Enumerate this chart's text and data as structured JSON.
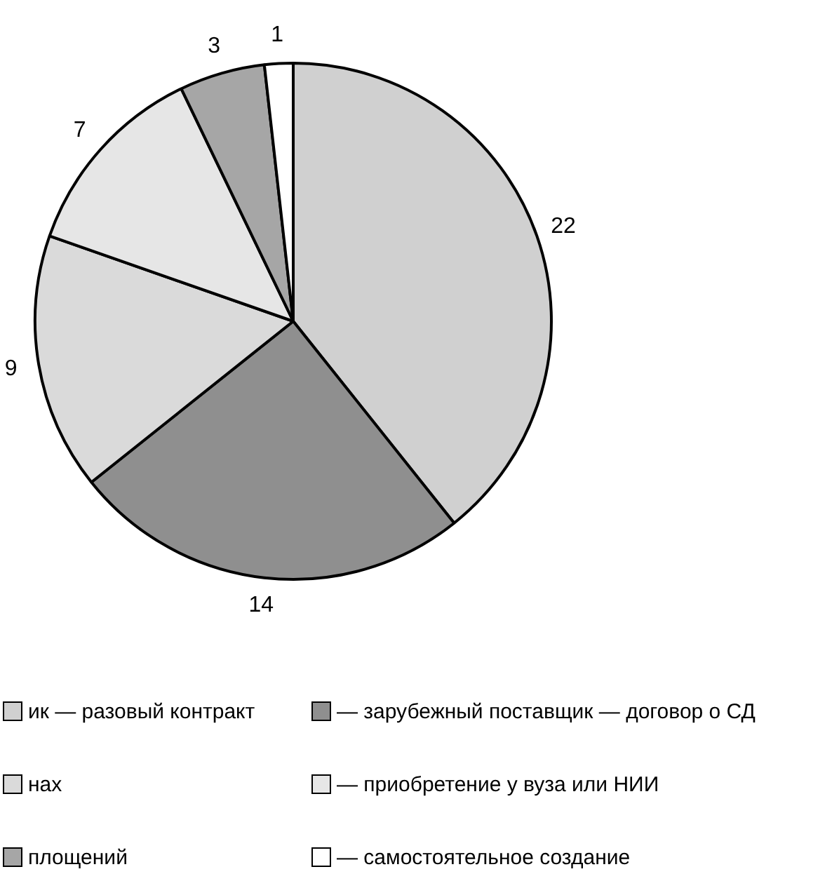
{
  "chart_data": {
    "type": "pie",
    "categories": [
      "ик — разовый контракт",
      "— зарубежный поставщик — договор о СД",
      "нах",
      "— приобретение у вуза или НИИ",
      "площений",
      "— самостоятельное создание"
    ],
    "values": [
      22,
      14,
      9,
      7,
      3,
      1
    ],
    "colors": [
      "#d0d0d0",
      "#8f8f8f",
      "#dadada",
      "#e6e6e6",
      "#a6a6a6",
      "#ffffff"
    ],
    "data_labels": true,
    "legend": "bottom"
  }
}
